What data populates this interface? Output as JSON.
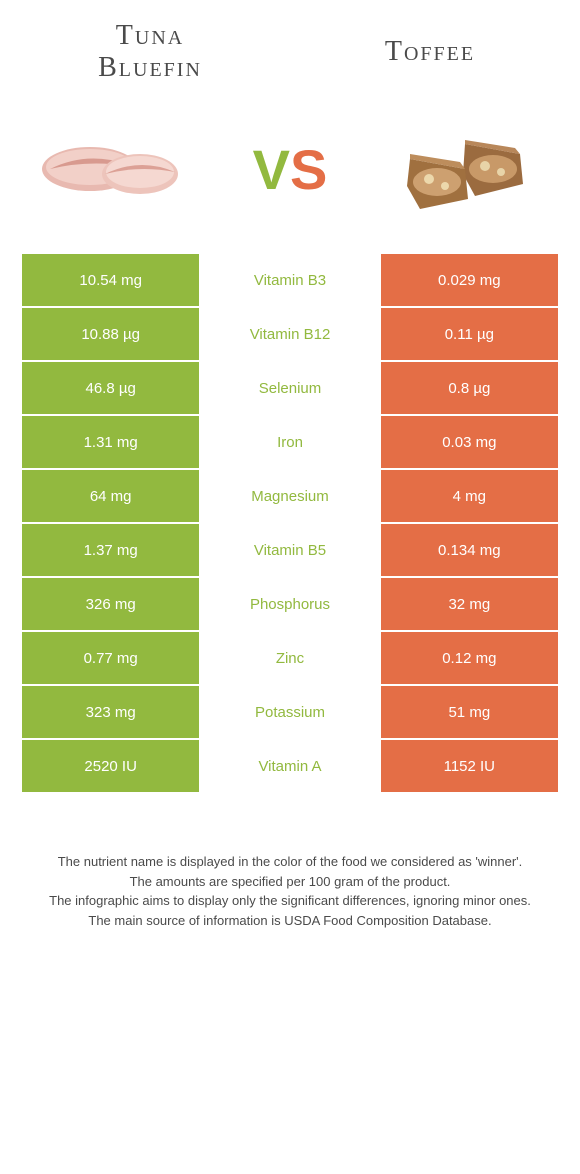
{
  "colors": {
    "green": "#92b93f",
    "orange": "#e46e46",
    "text": "#4a4a4a",
    "white": "#ffffff"
  },
  "header": {
    "left_title_line1": "Tuna",
    "left_title_line2": "Bluefin",
    "right_title": "Toffee"
  },
  "vs": {
    "v": "V",
    "s": "S"
  },
  "rows": [
    {
      "left": "10.54 mg",
      "label": "Vitamin B3",
      "right": "0.029 mg",
      "winner": "green"
    },
    {
      "left": "10.88 µg",
      "label": "Vitamin B12",
      "right": "0.11 µg",
      "winner": "green"
    },
    {
      "left": "46.8 µg",
      "label": "Selenium",
      "right": "0.8 µg",
      "winner": "green"
    },
    {
      "left": "1.31 mg",
      "label": "Iron",
      "right": "0.03 mg",
      "winner": "green"
    },
    {
      "left": "64 mg",
      "label": "Magnesium",
      "right": "4 mg",
      "winner": "green"
    },
    {
      "left": "1.37 mg",
      "label": "Vitamin B5",
      "right": "0.134 mg",
      "winner": "green"
    },
    {
      "left": "326 mg",
      "label": "Phosphorus",
      "right": "32 mg",
      "winner": "green"
    },
    {
      "left": "0.77 mg",
      "label": "Zinc",
      "right": "0.12 mg",
      "winner": "green"
    },
    {
      "left": "323 mg",
      "label": "Potassium",
      "right": "51 mg",
      "winner": "green"
    },
    {
      "left": "2520 IU",
      "label": "Vitamin A",
      "right": "1152 IU",
      "winner": "green"
    }
  ],
  "footer": {
    "line1": "The nutrient name is displayed in the color of the food we considered as 'winner'.",
    "line2": "The amounts are specified per 100 gram of the product.",
    "line3": "The infographic aims to display only the significant differences, ignoring minor ones.",
    "line4": "The main source of information is USDA Food Composition Database."
  }
}
